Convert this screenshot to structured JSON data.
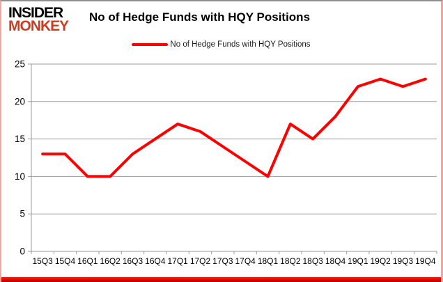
{
  "brand": {
    "line1": "INSIDER",
    "line2": "MONKEY"
  },
  "header": {
    "title": "No of Hedge Funds with HQY Positions"
  },
  "legend": {
    "label": "No of Hedge Funds with HQY Positions"
  },
  "colors": {
    "series": "#ff0000",
    "grid": "#9a9a9a",
    "axis": "#9a9a9a",
    "text": "#000000",
    "logo_red": "#ce3c1f",
    "bottom_bar": "#e30000",
    "side_border": "#f2a49e",
    "top_border": "#8e8e8e"
  },
  "chart_data": {
    "type": "line",
    "title": "No of Hedge Funds with HQY Positions",
    "series_name": "No of Hedge Funds with HQY Positions",
    "categories": [
      "15Q3",
      "15Q4",
      "16Q1",
      "16Q2",
      "16Q3",
      "16Q4",
      "17Q1",
      "17Q2",
      "17Q3",
      "17Q4",
      "18Q1",
      "18Q2",
      "18Q3",
      "18Q4",
      "19Q1",
      "19Q2",
      "19Q3",
      "19Q4"
    ],
    "values": [
      13,
      13,
      10,
      10,
      13,
      15,
      17,
      16,
      14,
      12,
      10,
      17,
      15,
      18,
      22,
      23,
      22,
      23
    ],
    "xlabel": "",
    "ylabel": "",
    "ylim": [
      0,
      25
    ],
    "yticks": [
      0,
      5,
      10,
      15,
      20,
      25
    ],
    "grid": true,
    "legend_position": "top-center",
    "line_color": "#ff0000",
    "line_width": 4,
    "markers": false
  }
}
